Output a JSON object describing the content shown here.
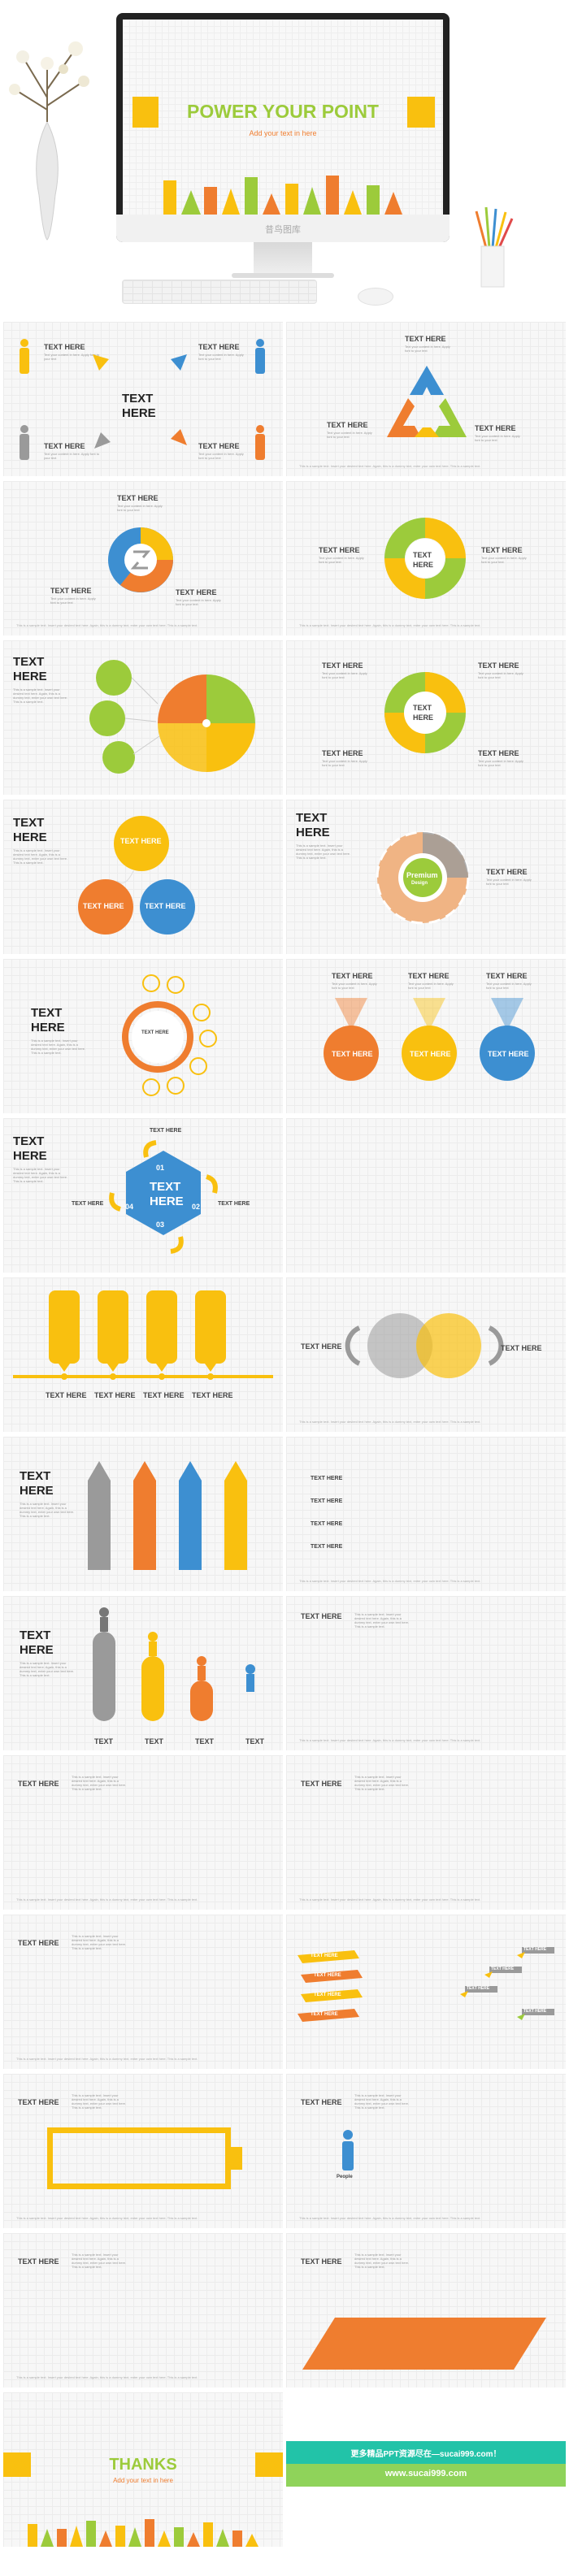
{
  "hero": {
    "title": "POWER YOUR POINT",
    "subtitle": "Add your text in here",
    "monitor_brand": "昔鸟图库"
  },
  "labels": {
    "text_here": "TEXT HERE",
    "text": "TEXT",
    "here": "HERE",
    "premium": "Premium",
    "design": "Design",
    "people": "People",
    "body": "Text your content in here. Apply font to your text",
    "note": "This is a sample text. Insert your desired text here. Again, this is a dummy text, enter your own text here. This is a sample text."
  },
  "numbers": [
    "01",
    "02",
    "03",
    "04"
  ],
  "end": {
    "thanks": "THANKS",
    "subtitle": "Add your text in here",
    "banner_line1": "更多精品PPT资源尽在—sucai999.com！",
    "banner_line2": "www.sucai999.com"
  },
  "colors": {
    "orange": "#ef7d2f",
    "yellow": "#f9c00f",
    "green": "#9ccb3b",
    "blue": "#3d8fd1",
    "gray": "#9a9a9a",
    "accent_title": "#9ccb3b"
  }
}
